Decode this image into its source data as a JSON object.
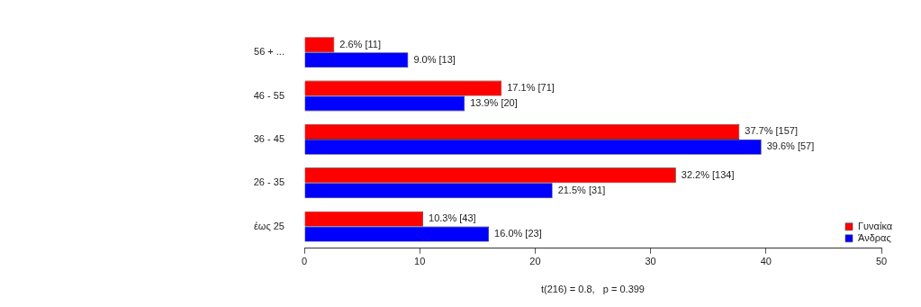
{
  "chart_data": {
    "type": "bar",
    "orientation": "horizontal",
    "categories": [
      "56 + ...",
      "46 - 55",
      "36 - 45",
      "26 - 35",
      "έως 25"
    ],
    "series": [
      {
        "name": "Γυναίκα",
        "color": "#ff0000",
        "values": [
          2.6,
          17.1,
          37.7,
          32.2,
          10.3
        ],
        "value_labels": [
          "2.6% [11]",
          "17.1% [71]",
          "37.7% [157]",
          "32.2% [134]",
          "10.3% [43]"
        ]
      },
      {
        "name": "Άνδρας",
        "color": "#0000ff",
        "values": [
          9.0,
          13.9,
          39.6,
          21.5,
          16.0
        ],
        "value_labels": [
          "9.0% [13]",
          "13.9% [20]",
          "39.6% [57]",
          "21.5% [31]",
          "16.0% [23]"
        ]
      }
    ],
    "xlim": [
      0,
      50
    ],
    "xticks": [
      0,
      10,
      20,
      30,
      40,
      50
    ],
    "grid": false,
    "legend": "bottom right",
    "annotations": [
      "t(216) = 0.8,   p = 0.399"
    ]
  }
}
